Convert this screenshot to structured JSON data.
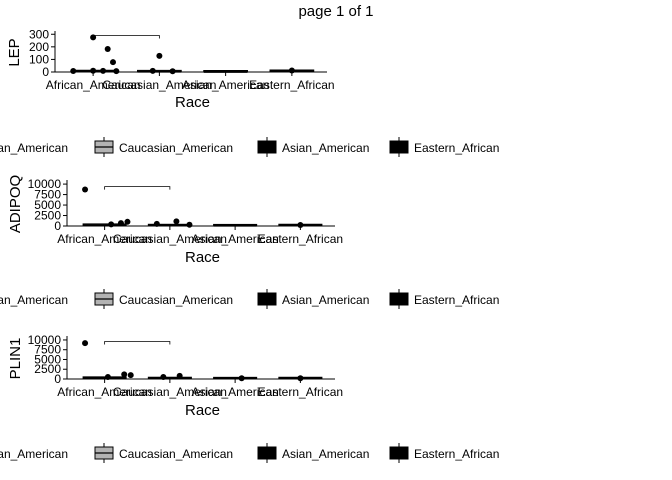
{
  "page_title": "page 1 of 1",
  "legend_entries": [
    {
      "label": "African_American",
      "fill": "#ffffff"
    },
    {
      "label": "Caucasian_American",
      "fill": "#b3b3b3"
    },
    {
      "label": "Asian_American",
      "fill": "#000000"
    },
    {
      "label": "Eastern_African",
      "fill": "#000000"
    }
  ],
  "chart_data": [
    {
      "type": "box",
      "ylabel": "LEP",
      "xlabel": "Race",
      "categories": [
        "African_American",
        "Caucasian_American",
        "Asian_American",
        "Eastern_African"
      ],
      "yticks": [
        0,
        100,
        200,
        300
      ],
      "ylim": [
        0,
        310
      ],
      "boxes": [
        {
          "q1": 2,
          "median": 5,
          "q3": 12
        },
        {
          "q1": 1,
          "median": 3,
          "q3": 8
        },
        {
          "q1": 0,
          "median": 1,
          "q3": 3
        },
        {
          "q1": 4,
          "median": 7,
          "q3": 13
        }
      ],
      "points": [
        {
          "category": 0,
          "value": 275,
          "jitter": 0.0
        },
        {
          "category": 0,
          "value": 183,
          "jitter": 0.22
        },
        {
          "category": 0,
          "value": 78,
          "jitter": 0.3
        },
        {
          "category": 0,
          "value": 8,
          "jitter": -0.3
        },
        {
          "category": 0,
          "value": 10,
          "jitter": 0.0
        },
        {
          "category": 0,
          "value": 9,
          "jitter": 0.15
        },
        {
          "category": 0,
          "value": 7,
          "jitter": 0.35
        },
        {
          "category": 1,
          "value": 128,
          "jitter": 0.0
        },
        {
          "category": 1,
          "value": 9,
          "jitter": -0.1
        },
        {
          "category": 1,
          "value": 6,
          "jitter": 0.2
        },
        {
          "category": 3,
          "value": 12,
          "jitter": 0.0
        }
      ],
      "bracket": {
        "from": 0,
        "to": 1,
        "value": 290
      }
    },
    {
      "type": "box",
      "ylabel": "ADIPOQ",
      "xlabel": "Race",
      "categories": [
        "African_American",
        "Caucasian_American",
        "Asian_American",
        "Eastern_African"
      ],
      "yticks": [
        0,
        2500,
        5000,
        7500,
        10000
      ],
      "ylim": [
        0,
        10500
      ],
      "boxes": [
        {
          "q1": 50,
          "median": 200,
          "q3": 500
        },
        {
          "q1": 50,
          "median": 150,
          "q3": 400
        },
        {
          "q1": 20,
          "median": 80,
          "q3": 200
        },
        {
          "q1": 60,
          "median": 180,
          "q3": 350
        }
      ],
      "points": [
        {
          "category": 0,
          "value": 8700,
          "jitter": -0.3
        },
        {
          "category": 0,
          "value": 1000,
          "jitter": 0.35
        },
        {
          "category": 0,
          "value": 700,
          "jitter": 0.25
        },
        {
          "category": 0,
          "value": 400,
          "jitter": 0.1
        },
        {
          "category": 1,
          "value": 1100,
          "jitter": 0.1
        },
        {
          "category": 1,
          "value": 500,
          "jitter": -0.2
        },
        {
          "category": 1,
          "value": 300,
          "jitter": 0.3
        },
        {
          "category": 3,
          "value": 250,
          "jitter": 0.0
        }
      ],
      "bracket": {
        "from": 0,
        "to": 1,
        "value": 9400
      }
    },
    {
      "type": "box",
      "ylabel": "PLIN1",
      "xlabel": "Race",
      "categories": [
        "African_American",
        "Caucasian_American",
        "Asian_American",
        "Eastern_African"
      ],
      "yticks": [
        0,
        2500,
        5000,
        7500,
        10000
      ],
      "ylim": [
        0,
        10500
      ],
      "boxes": [
        {
          "q1": 80,
          "median": 250,
          "q3": 550
        },
        {
          "q1": 70,
          "median": 200,
          "q3": 450
        },
        {
          "q1": 40,
          "median": 120,
          "q3": 260
        },
        {
          "q1": 60,
          "median": 160,
          "q3": 300
        }
      ],
      "points": [
        {
          "category": 0,
          "value": 9200,
          "jitter": -0.3
        },
        {
          "category": 0,
          "value": 1200,
          "jitter": 0.3
        },
        {
          "category": 0,
          "value": 1000,
          "jitter": 0.4
        },
        {
          "category": 0,
          "value": 500,
          "jitter": 0.05
        },
        {
          "category": 1,
          "value": 800,
          "jitter": 0.15
        },
        {
          "category": 1,
          "value": 500,
          "jitter": -0.1
        },
        {
          "category": 2,
          "value": 200,
          "jitter": 0.1
        },
        {
          "category": 3,
          "value": 200,
          "jitter": 0.0
        }
      ],
      "bracket": {
        "from": 0,
        "to": 1,
        "value": 9600
      }
    }
  ]
}
